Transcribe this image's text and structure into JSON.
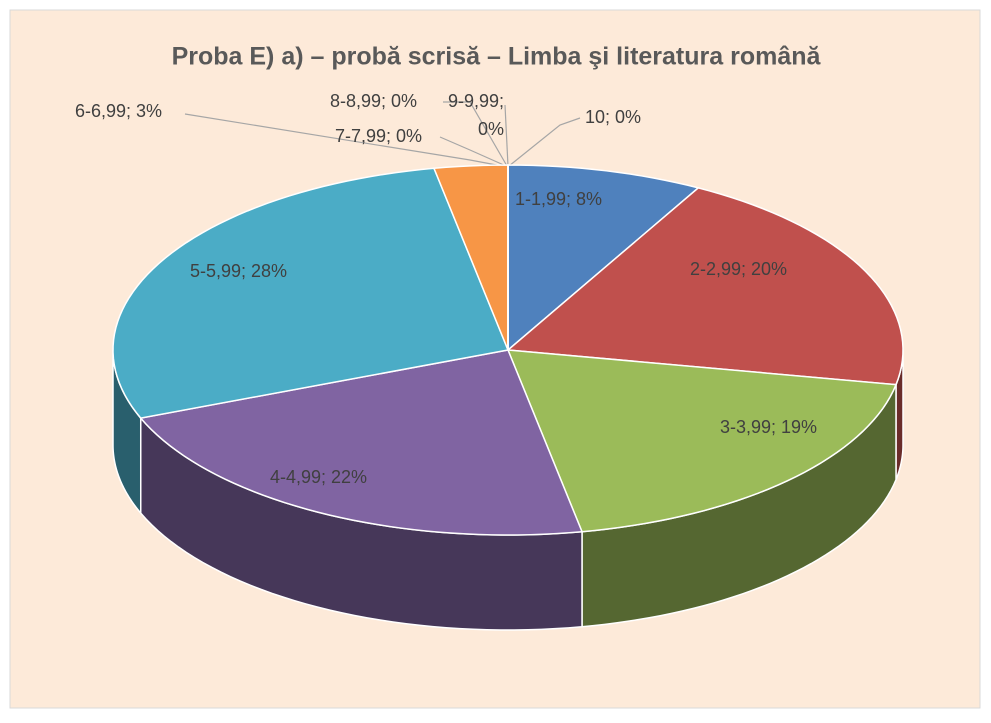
{
  "chart_data": {
    "type": "pie",
    "title": "Proba E) a) – probă scrisă – Limba şi literatura română",
    "values": [
      8,
      20,
      19,
      22,
      28,
      3,
      0,
      0,
      0,
      0
    ],
    "value_labels": [
      "1-1,99; 8%",
      "2-2,99; 20%",
      "3-3,99; 19%",
      "4-4,99; 22%",
      "5-5,99; 28%",
      "6-6,99; 3%",
      "7-7,99; 0%",
      "8-8,99; 0%",
      "9-9,99; 0%",
      "10; 0%"
    ],
    "colors": [
      "#4f81bd",
      "#c0504d",
      "#9bbb59",
      "#8064a2",
      "#4bacc6",
      "#f79646",
      "#2c4d75",
      "#772c2a",
      "#5f7530",
      "#4d3b62"
    ]
  }
}
